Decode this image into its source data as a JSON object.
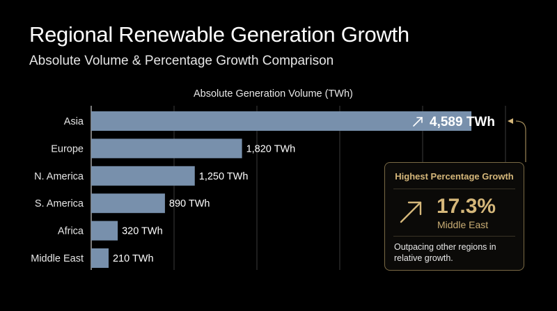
{
  "header": {
    "title": "Regional Renewable Generation Growth",
    "subtitle": "Absolute Volume & Percentage Growth Comparison"
  },
  "chart_data": {
    "type": "bar",
    "orientation": "horizontal",
    "xlabel": "Absolute Generation Volume (TWh)",
    "unit": "TWh",
    "categories": [
      "Asia",
      "Europe",
      "N. America",
      "S. America",
      "Africa",
      "Middle East"
    ],
    "values": [
      4589,
      1820,
      1250,
      890,
      320,
      210
    ],
    "data_labels": [
      "4,589 TWh",
      "1,820 TWh",
      "1,250 TWh",
      "890 TWh",
      "320 TWh",
      "210 TWh"
    ],
    "xlim": [
      0,
      5000
    ],
    "gridlines": [
      0,
      1000,
      2000,
      3000,
      4000,
      5000
    ],
    "grid": true,
    "bar_color": "#7890ac",
    "highlight_category": "Asia"
  },
  "callout": {
    "heading": "Highest Percentage Growth",
    "value": "17.3%",
    "region": "Middle East",
    "note": "Outpacing other regions in relative growth.",
    "accent_color": "#d5b77a",
    "icon": "arrow-up-right-icon"
  }
}
